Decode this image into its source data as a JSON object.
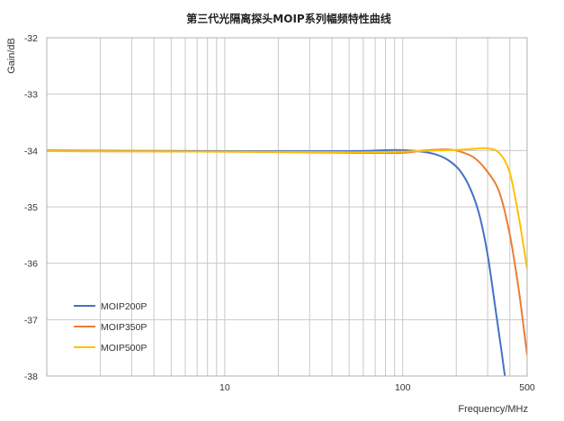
{
  "chart_data": {
    "type": "line",
    "title": "第三代光隔离探头MOIP系列幅频特性曲线",
    "xlabel": "Frequency/MHz",
    "ylabel": "Gain/dB",
    "x_scale": "log",
    "xlim": [
      1,
      500
    ],
    "ylim": [
      -38,
      -32
    ],
    "x_ticks": [
      10,
      100,
      500
    ],
    "x_tick_labels": [
      "10",
      "100",
      "500"
    ],
    "y_ticks": [
      -38,
      -37,
      -36,
      -35,
      -34,
      -33,
      -32
    ],
    "y_tick_labels": [
      "-38",
      "-37",
      "-36",
      "-35",
      "-34",
      "-33",
      "-32"
    ],
    "grid": true,
    "legend_position": "bottom-left",
    "series": [
      {
        "name": "MOIP200P",
        "color": "#4472c4",
        "x": [
          1,
          10,
          50,
          90,
          120,
          150,
          180,
          210,
          240,
          270,
          300,
          330,
          355,
          375
        ],
        "y": [
          -34.0,
          -34.01,
          -34.01,
          -33.99,
          -34.01,
          -34.06,
          -34.17,
          -34.36,
          -34.68,
          -35.15,
          -35.85,
          -36.75,
          -37.45,
          -38.0
        ]
      },
      {
        "name": "MOIP350P",
        "color": "#ed7d31",
        "x": [
          1,
          10,
          50,
          100,
          130,
          170,
          200,
          250,
          300,
          350,
          400,
          450,
          500
        ],
        "y": [
          -34.01,
          -34.02,
          -34.04,
          -34.04,
          -34.0,
          -33.98,
          -34.0,
          -34.12,
          -34.38,
          -34.75,
          -35.5,
          -36.5,
          -37.63
        ]
      },
      {
        "name": "MOIP500P",
        "color": "#ffc000",
        "x": [
          1,
          10,
          50,
          100,
          150,
          200,
          250,
          300,
          350,
          400,
          450,
          500
        ],
        "y": [
          -34.01,
          -34.02,
          -34.03,
          -34.02,
          -34.0,
          -33.99,
          -33.97,
          -33.96,
          -34.05,
          -34.4,
          -35.2,
          -36.1
        ]
      }
    ]
  }
}
